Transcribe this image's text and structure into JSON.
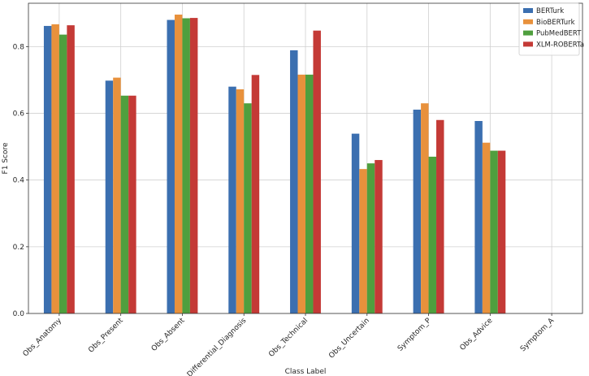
{
  "chart_data": {
    "type": "bar",
    "xlabel": "Class Label",
    "ylabel": "F1 Score",
    "ylim": [
      0,
      0.93
    ],
    "yticks": [
      "0.0",
      "0.2",
      "0.4",
      "0.6",
      "0.8"
    ],
    "grid": true,
    "legend_position": "top-right",
    "categories": [
      "Obs_Anatomy",
      "Obs_Present",
      "Obs_Absent",
      "Differential_Diagnosis",
      "Obs_Technical",
      "Obs_Uncertain",
      "Symptom_P",
      "Obs_Advice",
      "Symptom_A"
    ],
    "series": [
      {
        "name": "BERTurk",
        "color": "#3b6fb0",
        "values": [
          0.862,
          0.698,
          0.88,
          0.68,
          0.789,
          0.539,
          0.611,
          0.577,
          0
        ]
      },
      {
        "name": "BioBERTurk",
        "color": "#e8913c",
        "values": [
          0.867,
          0.707,
          0.896,
          0.672,
          0.716,
          0.433,
          0.63,
          0.512,
          0
        ]
      },
      {
        "name": "PubMedBERT",
        "color": "#4f9f3e",
        "values": [
          0.836,
          0.653,
          0.885,
          0.63,
          0.716,
          0.45,
          0.47,
          0.488,
          0
        ]
      },
      {
        "name": "XLM-ROBERTa",
        "color": "#c43a36",
        "values": [
          0.864,
          0.653,
          0.886,
          0.715,
          0.848,
          0.46,
          0.58,
          0.488,
          0
        ]
      }
    ]
  }
}
